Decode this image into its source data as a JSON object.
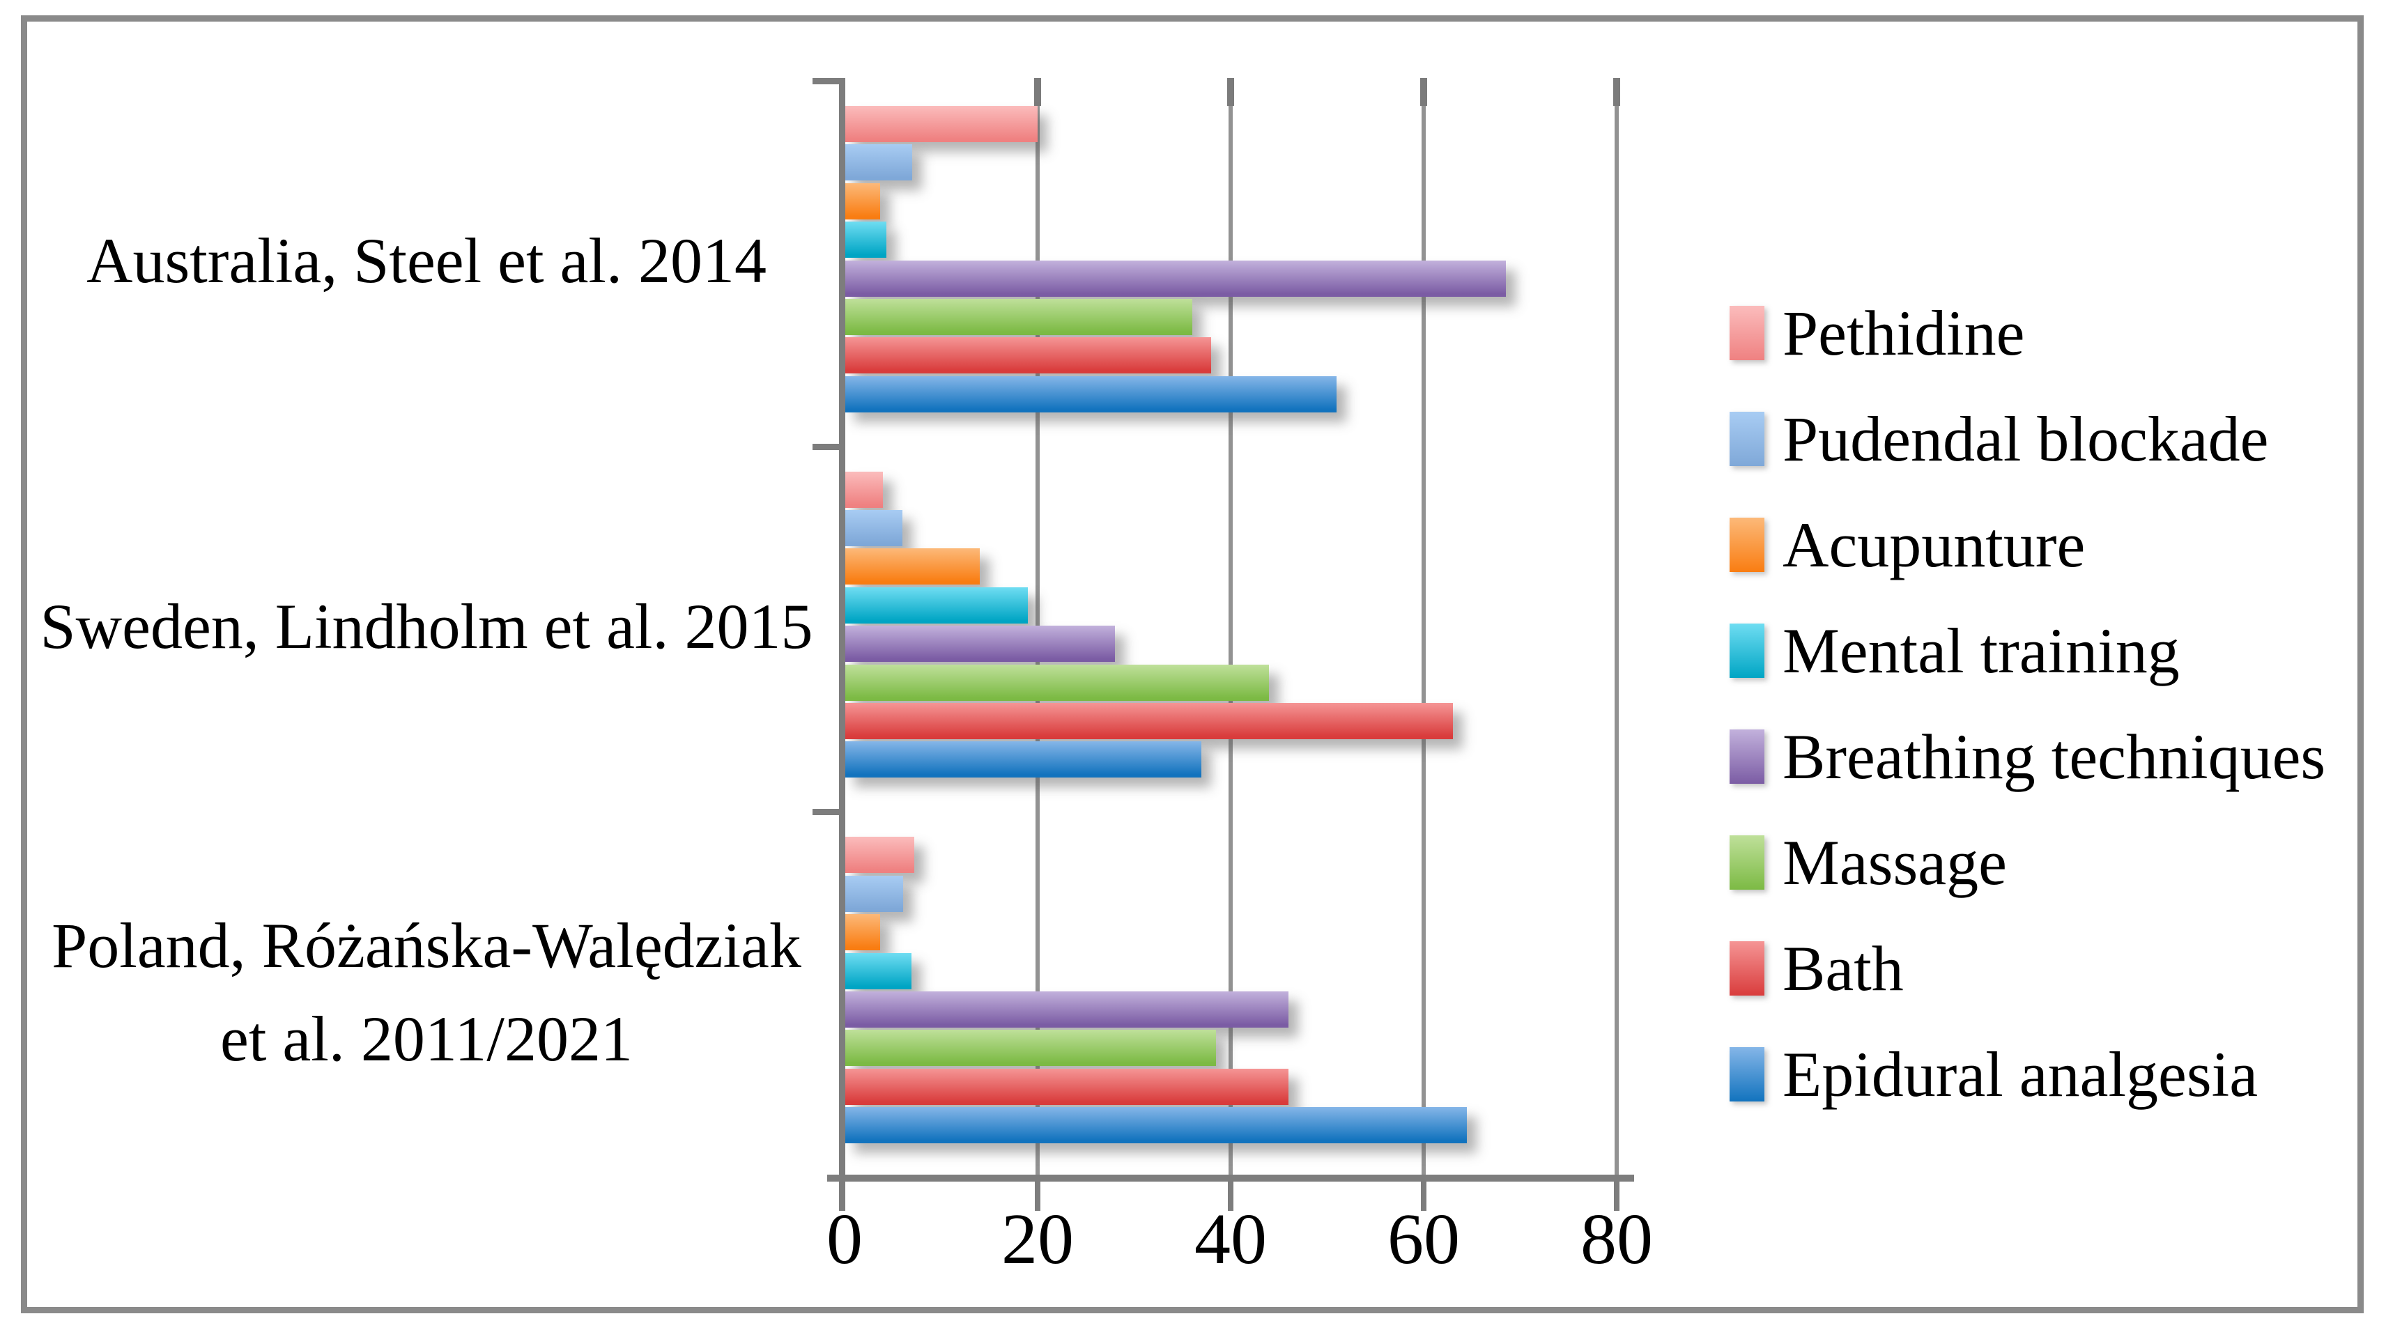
{
  "chart_data": {
    "type": "bar",
    "orientation": "horizontal",
    "title": "",
    "xlabel": "",
    "ylabel": "",
    "xlim": [
      0,
      80
    ],
    "x_ticks": [
      "0",
      "20",
      "40",
      "60",
      "80"
    ],
    "grid": true,
    "legend_position": "right",
    "categories": [
      {
        "label_lines": [
          "Australia, Steel et al. 2014"
        ]
      },
      {
        "label_lines": [
          "Sweden, Lindholm et al. 2015"
        ]
      },
      {
        "label_lines": [
          "Poland, Różańska-Walędziak",
          "et al. 2011/2021"
        ]
      }
    ],
    "series": [
      {
        "name": "Pethidine",
        "values": [
          20,
          4,
          7.2
        ],
        "color_top": "#fbbcbc",
        "color_bottom": "#ef8181"
      },
      {
        "name": "Pudendal blockade",
        "values": [
          7,
          6,
          6.1
        ],
        "color_top": "#a8ccf3",
        "color_bottom": "#7fa8d8"
      },
      {
        "name": "Acupunture",
        "values": [
          3.7,
          14,
          3.7
        ],
        "color_top": "#fcb979",
        "color_bottom": "#f97d12"
      },
      {
        "name": "Mental training",
        "values": [
          4.3,
          19,
          6.9
        ],
        "color_top": "#6fddf2",
        "color_bottom": "#00a5c4"
      },
      {
        "name": "Breathing techniques",
        "values": [
          68.5,
          28,
          46
        ],
        "color_top": "#c2b1dc",
        "color_bottom": "#7b5ca4"
      },
      {
        "name": "Massage",
        "values": [
          36,
          44,
          38.5
        ],
        "color_top": "#bfe09a",
        "color_bottom": "#7cba44"
      },
      {
        "name": "Bath",
        "values": [
          38,
          63,
          46
        ],
        "color_top": "#f59595",
        "color_bottom": "#d93c3c"
      },
      {
        "name": "Epidural analgesia",
        "values": [
          51,
          37,
          64.5
        ],
        "color_top": "#85b6e8",
        "color_bottom": "#1273be"
      }
    ]
  },
  "styles": {
    "frame_color": "#8a8a8a",
    "axis_color": "#7d7d7d",
    "grid_color": "#929292",
    "text_color": "#000000",
    "background": "#ffffff"
  }
}
